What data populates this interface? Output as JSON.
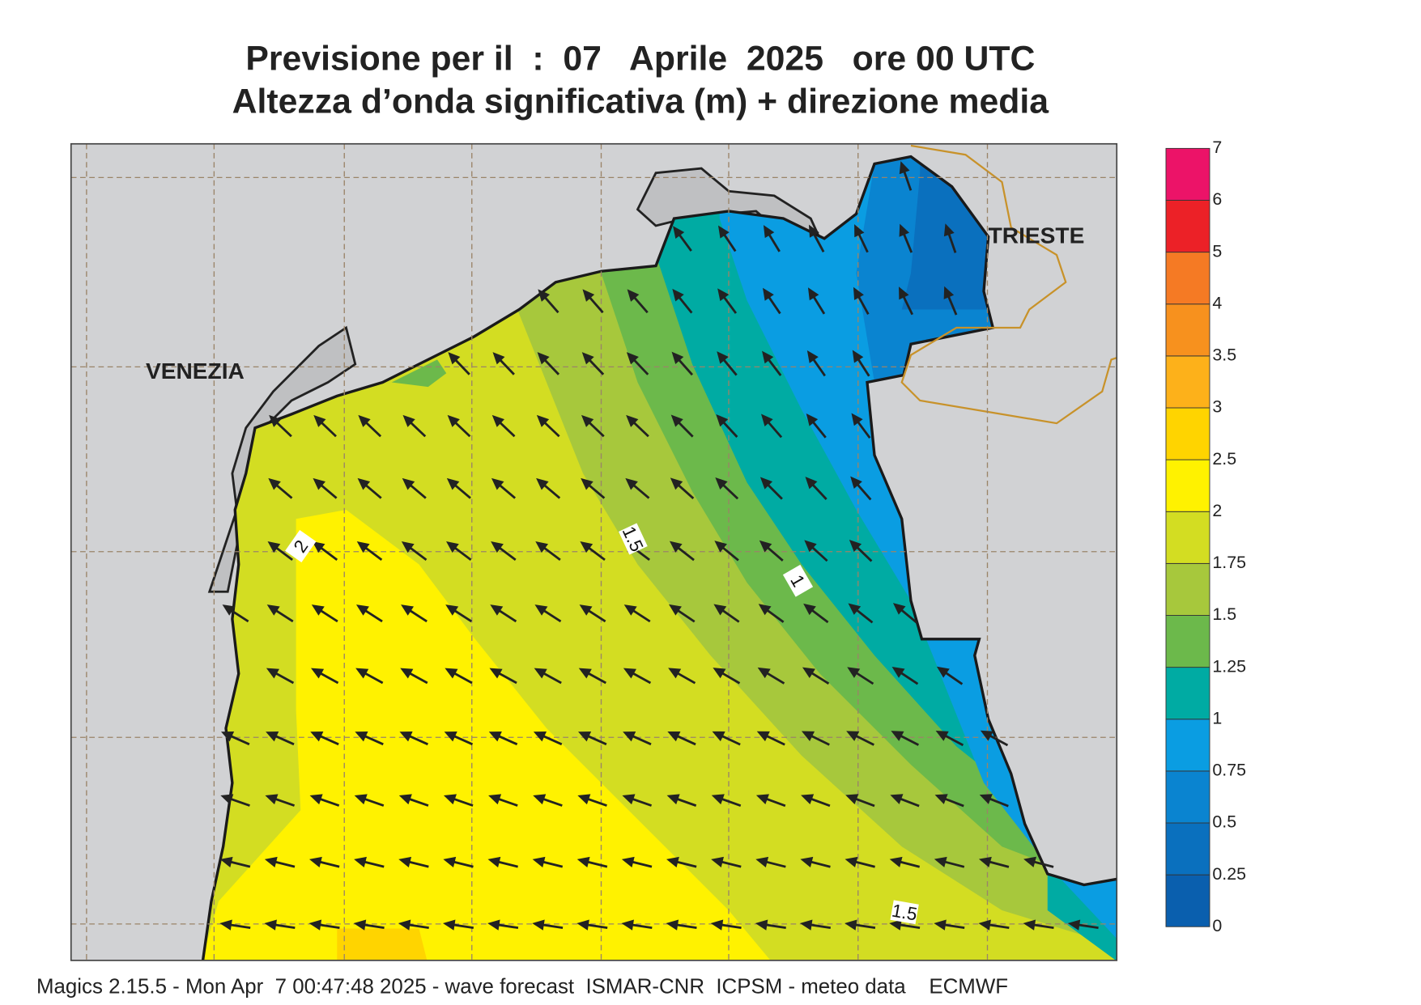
{
  "header": {
    "title_line1": "Previsione per il  :  07   Aprile  2025   ore 00 UTC",
    "title_line2": "Altezza d’onda significativa (m) + direzione media"
  },
  "places": [
    "VENEZIA",
    "TRIESTE"
  ],
  "contour_labels": [
    "2",
    "1.5",
    "1",
    "1.5"
  ],
  "colorbar": {
    "levels": [
      0,
      0.25,
      0.5,
      0.75,
      1,
      1.25,
      1.5,
      1.75,
      2,
      2.5,
      3,
      3.5,
      4,
      5,
      6,
      7
    ],
    "colors": [
      "#0a5fae",
      "#0a70be",
      "#0a84d0",
      "#0a9de2",
      "#00aba3",
      "#6cb94b",
      "#a7c83c",
      "#d3dd22",
      "#fff200",
      "#ffd400",
      "#fdb11a",
      "#f7911e",
      "#f57a24",
      "#ec2127",
      "#ec1368"
    ]
  },
  "footer": "Magics 2.15.5 - Mon Apr  7 00:47:48 2025 - wave forecast  ISMAR-CNR  ICPSM - meteo data    ECMWF"
}
